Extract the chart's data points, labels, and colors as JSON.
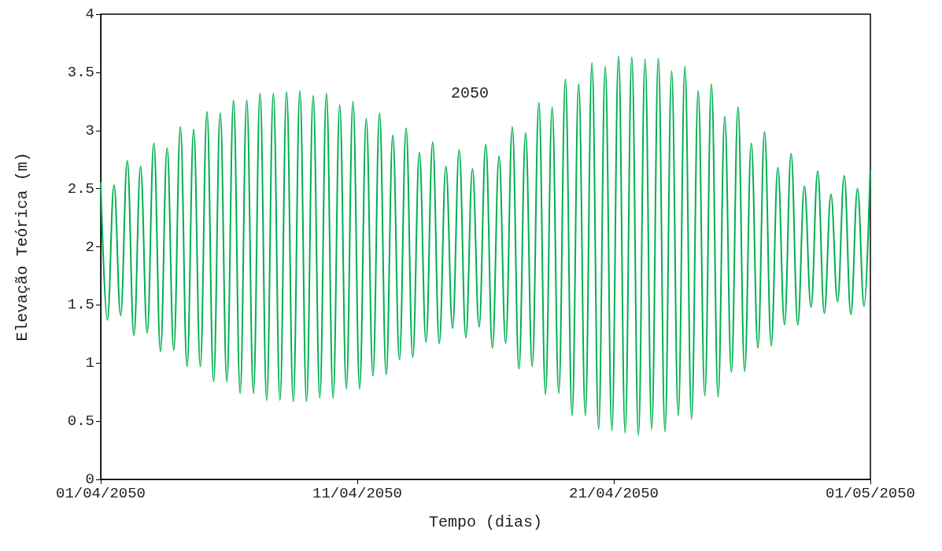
{
  "chart_data": {
    "type": "line",
    "xlabel": "Tempo (dias)",
    "ylabel": "Elevação Teórica (m)",
    "annotations": [
      "2050"
    ],
    "xlim": [
      "2050-04-01",
      "2050-05-01"
    ],
    "xticks": [
      {
        "value": "2050-04-01",
        "label": "01/04/2050"
      },
      {
        "value": "2050-04-11",
        "label": "11/04/2050"
      },
      {
        "value": "2050-04-21",
        "label": "21/04/2050"
      },
      {
        "value": "2050-05-01",
        "label": "01/05/2050"
      }
    ],
    "ylim": [
      0,
      4
    ],
    "yticks": [
      0,
      0.5,
      1,
      1.5,
      2,
      2.5,
      3,
      3.5,
      4
    ],
    "grid": false,
    "marker": "none",
    "line_style": "solid",
    "x": [
      "2050-04-01T00:00",
      "2050-04-01T06:13",
      "2050-04-01T12:25",
      "2050-04-01T18:38",
      "2050-04-02T00:50",
      "2050-04-02T07:03",
      "2050-04-02T13:16",
      "2050-04-02T19:28",
      "2050-04-03T01:41",
      "2050-04-03T07:53",
      "2050-04-03T14:06",
      "2050-04-03T20:19",
      "2050-04-04T02:31",
      "2050-04-04T08:44",
      "2050-04-04T14:56",
      "2050-04-04T21:09",
      "2050-04-05T03:22",
      "2050-04-05T09:34",
      "2050-04-05T15:47",
      "2050-04-05T21:59",
      "2050-04-06T04:12",
      "2050-04-06T10:25",
      "2050-04-06T16:37",
      "2050-04-06T22:50",
      "2050-04-07T05:02",
      "2050-04-07T11:15",
      "2050-04-07T17:28",
      "2050-04-07T23:40",
      "2050-04-08T05:53",
      "2050-04-08T12:05",
      "2050-04-08T18:18",
      "2050-04-09T00:31",
      "2050-04-09T06:43",
      "2050-04-09T12:56",
      "2050-04-09T19:08",
      "2050-04-10T01:21",
      "2050-04-10T07:34",
      "2050-04-10T13:46",
      "2050-04-10T19:59",
      "2050-04-11T02:11",
      "2050-04-11T08:24",
      "2050-04-11T14:37",
      "2050-04-11T20:49",
      "2050-04-12T03:02",
      "2050-04-12T09:14",
      "2050-04-12T15:27",
      "2050-04-12T21:40",
      "2050-04-13T03:52",
      "2050-04-13T10:05",
      "2050-04-13T16:17",
      "2050-04-13T22:30",
      "2050-04-14T04:43",
      "2050-04-14T10:55",
      "2050-04-14T17:08",
      "2050-04-14T23:20",
      "2050-04-15T05:33",
      "2050-04-15T11:46",
      "2050-04-15T17:58",
      "2050-04-16T00:11",
      "2050-04-16T06:23",
      "2050-04-16T12:36",
      "2050-04-16T18:49",
      "2050-04-17T01:01",
      "2050-04-17T07:14",
      "2050-04-17T13:26",
      "2050-04-17T19:39",
      "2050-04-18T01:52",
      "2050-04-18T08:04",
      "2050-04-18T14:17",
      "2050-04-18T20:29",
      "2050-04-19T02:42",
      "2050-04-19T08:55",
      "2050-04-19T15:07",
      "2050-04-19T21:20",
      "2050-04-20T03:32",
      "2050-04-20T09:45",
      "2050-04-20T15:58",
      "2050-04-20T22:10",
      "2050-04-21T04:23",
      "2050-04-21T10:35",
      "2050-04-21T16:48",
      "2050-04-21T23:01",
      "2050-04-22T05:13",
      "2050-04-22T11:26",
      "2050-04-22T17:38",
      "2050-04-22T23:51",
      "2050-04-23T06:04",
      "2050-04-23T12:16",
      "2050-04-23T18:29",
      "2050-04-24T00:41",
      "2050-04-24T06:54",
      "2050-04-24T13:07",
      "2050-04-24T19:19",
      "2050-04-25T01:32",
      "2050-04-25T07:44",
      "2050-04-25T13:57",
      "2050-04-25T20:10",
      "2050-04-26T02:22",
      "2050-04-26T08:35",
      "2050-04-26T14:47",
      "2050-04-26T21:00",
      "2050-04-27T03:13",
      "2050-04-27T09:25",
      "2050-04-27T15:38",
      "2050-04-27T21:50",
      "2050-04-28T04:03",
      "2050-04-28T10:16",
      "2050-04-28T16:28",
      "2050-04-28T22:41",
      "2050-04-29T04:53",
      "2050-04-29T11:06",
      "2050-04-29T17:19",
      "2050-04-29T23:31",
      "2050-04-30T05:44",
      "2050-04-30T11:56",
      "2050-04-30T18:09",
      "2050-04-30T23:45"
    ],
    "series": [
      {
        "color": "#00b050",
        "values": [
          2.55,
          1.37,
          2.53,
          1.41,
          2.74,
          1.24,
          2.69,
          1.26,
          2.89,
          1.1,
          2.85,
          1.11,
          3.03,
          0.97,
          3.01,
          0.97,
          3.16,
          0.84,
          3.15,
          0.84,
          3.26,
          0.74,
          3.26,
          0.74,
          3.32,
          0.68,
          3.32,
          0.68,
          3.33,
          0.67,
          3.34,
          0.67,
          3.3,
          0.7,
          3.32,
          0.7,
          3.22,
          0.78,
          3.25,
          0.78,
          3.1,
          0.89,
          3.15,
          0.9,
          2.96,
          1.03,
          3.02,
          1.05,
          2.81,
          1.18,
          2.9,
          1.17,
          2.69,
          1.3,
          2.83,
          1.22,
          2.67,
          1.31,
          2.88,
          1.13,
          2.78,
          1.17,
          3.03,
          0.95,
          2.98,
          0.97,
          3.24,
          0.73,
          3.2,
          0.74,
          3.44,
          0.55,
          3.4,
          0.55,
          3.58,
          0.43,
          3.55,
          0.42,
          3.64,
          0.4,
          3.63,
          0.38,
          3.61,
          0.43,
          3.62,
          0.41,
          3.51,
          0.55,
          3.55,
          0.52,
          3.34,
          0.72,
          3.4,
          0.71,
          3.12,
          0.92,
          3.2,
          0.93,
          2.89,
          1.13,
          2.99,
          1.15,
          2.68,
          1.33,
          2.8,
          1.33,
          2.52,
          1.48,
          2.65,
          1.43,
          2.45,
          1.53,
          2.61,
          1.42,
          2.5,
          1.49,
          2.65
        ]
      }
    ]
  }
}
